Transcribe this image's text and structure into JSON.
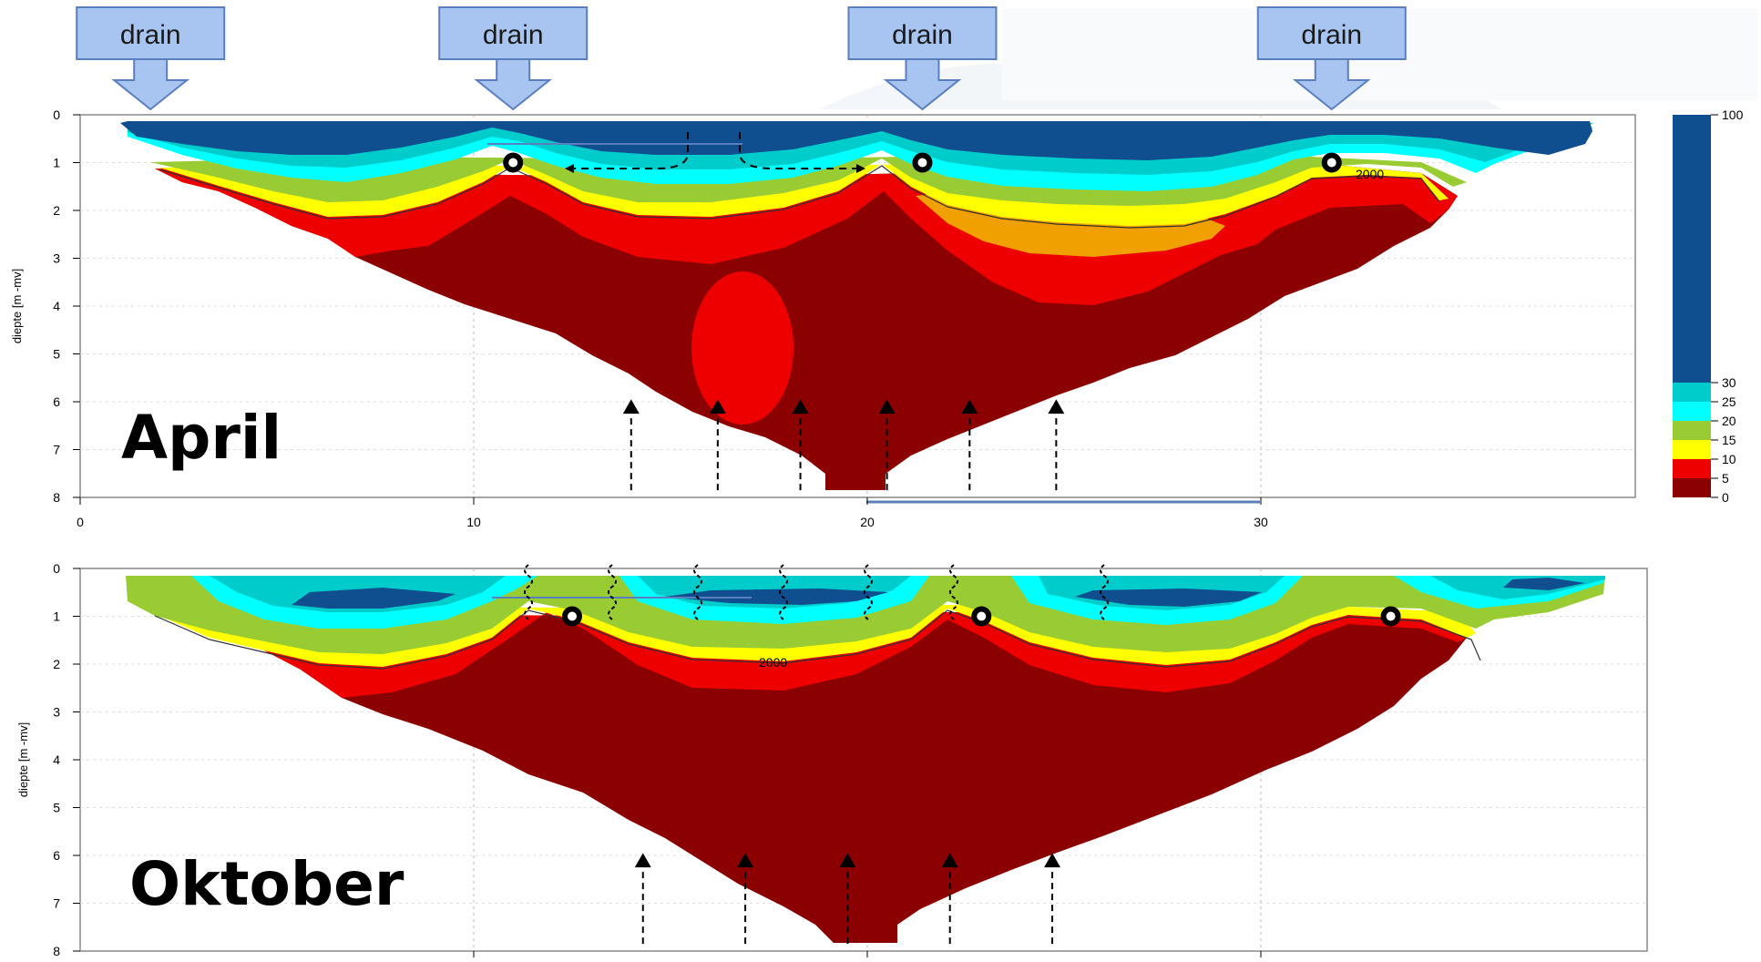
{
  "drains": {
    "label": "drain",
    "x_positions_m": [
      1,
      11,
      21.4,
      31.8
    ]
  },
  "colors": {
    "0-5": "#8b0000",
    "5-10": "#ee0000",
    "10-15": "#ffff00",
    "15-20": "#99cc33",
    "20-25": "#00ffff",
    "25-30": "#00cccc",
    "30-100": "#0f4f8f",
    "orange": "#f0a000",
    "drain_box": "#a8c4f0",
    "drain_border": "#5a7fbf"
  },
  "chart_data": [
    {
      "type": "heatmap",
      "title": "April",
      "ylabel": "diepte [m -mv]",
      "xlim": [
        0,
        39
      ],
      "ylim": [
        8,
        0
      ],
      "xticks": [
        "0",
        "10",
        "20",
        "30"
      ],
      "yticks": [
        "0",
        "1",
        "2",
        "3",
        "4",
        "5",
        "6",
        "7",
        "8"
      ],
      "grid": true,
      "colorbar_ticks": [
        "0",
        "5",
        "10",
        "15",
        "20",
        "25",
        "30",
        "100"
      ],
      "observation_points": [
        {
          "x": 11,
          "y": 1.0
        },
        {
          "x": 21.4,
          "y": 1.0
        },
        {
          "x": 31.8,
          "y": 1.0
        }
      ],
      "upward_arrows_x": [
        14,
        16.2,
        18.3,
        20.5,
        22.6,
        24.8
      ],
      "contour_label": "2000"
    },
    {
      "type": "heatmap",
      "title": "Oktober",
      "ylabel": "diepte [m -mv]",
      "xlim": [
        0,
        39
      ],
      "ylim": [
        8,
        0
      ],
      "yticks": [
        "0",
        "1",
        "2",
        "3",
        "4",
        "5",
        "6",
        "7",
        "8"
      ],
      "grid": true,
      "observation_points": [
        {
          "x": 12.5,
          "y": 1.0
        },
        {
          "x": 22.9,
          "y": 1.0
        },
        {
          "x": 33.3,
          "y": 1.0
        }
      ],
      "upward_arrows_x": [
        14.3,
        16.9,
        19.5,
        22.1,
        24.7
      ],
      "contour_label": "2000"
    }
  ]
}
